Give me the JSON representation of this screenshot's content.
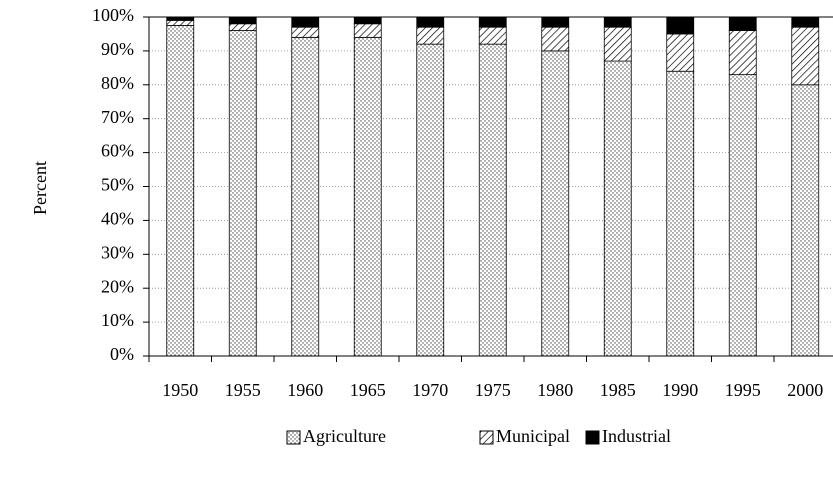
{
  "chart_data": {
    "type": "stacked_bar",
    "y_label": "Percent",
    "categories": [
      "1950",
      "1955",
      "1960",
      "1965",
      "1970",
      "1975",
      "1980",
      "1985",
      "1990",
      "1995",
      "2000"
    ],
    "series": [
      {
        "name": "Agriculture",
        "color": "#ffffff",
        "pattern": "dots",
        "values": [
          97.5,
          96,
          94,
          94,
          92,
          92,
          90,
          87,
          84,
          83,
          80
        ]
      },
      {
        "name": "Municipal",
        "color": "#ffffff",
        "pattern": "hatch",
        "values": [
          1.5,
          2,
          3,
          4,
          5,
          5,
          7,
          10,
          11,
          13,
          17
        ]
      },
      {
        "name": "Industrial",
        "color": "#000000",
        "pattern": "solid",
        "values": [
          1,
          2,
          3,
          2,
          3,
          3,
          3,
          3,
          5,
          4,
          3
        ]
      }
    ],
    "ylim": [
      0,
      100
    ],
    "yticks": [
      {
        "value": 0,
        "label": "0%"
      },
      {
        "value": 10,
        "label": "10%"
      },
      {
        "value": 20,
        "label": "20%"
      },
      {
        "value": 30,
        "label": "30%"
      },
      {
        "value": 40,
        "label": "40%"
      },
      {
        "value": 50,
        "label": "50%"
      },
      {
        "value": 60,
        "label": "60%"
      },
      {
        "value": 70,
        "label": "70%"
      },
      {
        "value": 80,
        "label": "80%"
      },
      {
        "value": 90,
        "label": "90%"
      },
      {
        "value": 100,
        "label": "100%"
      }
    ],
    "grid": true,
    "legend": "bottom"
  }
}
